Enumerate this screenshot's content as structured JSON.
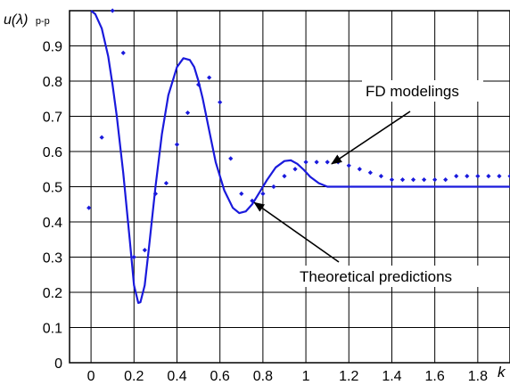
{
  "chart_data": {
    "type": "line",
    "ylabel_main": "u(λ)",
    "ylabel_sub": "p-p",
    "xlabel": "k",
    "xlim": [
      -0.1,
      1.95
    ],
    "ylim": [
      0,
      1.0
    ],
    "grid": true,
    "x_ticks": [
      "0",
      "0.2",
      "0.4",
      "0.6",
      "0.8",
      "1",
      "1.2",
      "1.4",
      "1.6",
      "1.8"
    ],
    "y_ticks": [
      "0",
      "0.1",
      "0.2",
      "0.3",
      "0.4",
      "0.5",
      "0.6",
      "0.7",
      "0.8",
      "0.9"
    ],
    "series": [
      {
        "style": "line",
        "color": "#1a1adc",
        "x": [
          0,
          0.02,
          0.05,
          0.08,
          0.1,
          0.12,
          0.15,
          0.18,
          0.2,
          0.22,
          0.23,
          0.25,
          0.27,
          0.3,
          0.33,
          0.36,
          0.4,
          0.43,
          0.46,
          0.48,
          0.5,
          0.52,
          0.55,
          0.58,
          0.62,
          0.66,
          0.69,
          0.72,
          0.75,
          0.78,
          0.82,
          0.86,
          0.9,
          0.93,
          0.96,
          0.99,
          1.02,
          1.06,
          1.1,
          1.14,
          1.2,
          1.3,
          1.4,
          1.6,
          1.8,
          1.95
        ],
        "y": [
          1.0,
          0.99,
          0.95,
          0.87,
          0.79,
          0.7,
          0.54,
          0.35,
          0.22,
          0.17,
          0.172,
          0.22,
          0.33,
          0.5,
          0.65,
          0.76,
          0.84,
          0.865,
          0.86,
          0.84,
          0.8,
          0.75,
          0.66,
          0.57,
          0.49,
          0.44,
          0.425,
          0.43,
          0.45,
          0.48,
          0.52,
          0.555,
          0.573,
          0.575,
          0.565,
          0.548,
          0.528,
          0.51,
          0.5,
          0.5,
          0.5,
          0.5,
          0.5,
          0.5,
          0.5,
          0.5
        ]
      },
      {
        "style": "markers",
        "color": "#1a1adc",
        "x": [
          -0.01,
          0.05,
          0.1,
          0.15,
          0.2,
          0.25,
          0.3,
          0.35,
          0.4,
          0.45,
          0.5,
          0.55,
          0.6,
          0.65,
          0.7,
          0.75,
          0.8,
          0.85,
          0.9,
          0.95,
          1.0,
          1.05,
          1.1,
          1.15,
          1.2,
          1.25,
          1.3,
          1.35,
          1.4,
          1.45,
          1.5,
          1.55,
          1.6,
          1.65,
          1.7,
          1.75,
          1.8,
          1.85,
          1.9,
          1.95
        ],
        "y": [
          0.44,
          0.64,
          1.0,
          0.88,
          0.3,
          0.32,
          0.48,
          0.51,
          0.62,
          0.71,
          0.79,
          0.81,
          0.74,
          0.58,
          0.48,
          0.46,
          0.48,
          0.5,
          0.53,
          0.55,
          0.57,
          0.57,
          0.57,
          0.57,
          0.56,
          0.55,
          0.54,
          0.53,
          0.52,
          0.52,
          0.52,
          0.52,
          0.52,
          0.52,
          0.53,
          0.53,
          0.53,
          0.53,
          0.53,
          0.53
        ]
      }
    ],
    "annotations": [
      {
        "text": "FD modelings",
        "target_x": 1.12,
        "target_y": 0.565
      },
      {
        "text": "Theoretical predictions",
        "target_x": 0.76,
        "target_y": 0.455
      }
    ]
  }
}
